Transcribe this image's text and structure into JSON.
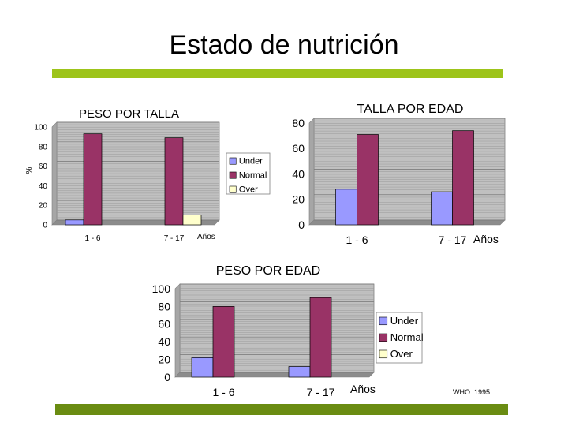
{
  "slide": {
    "title": "Estado de nutrición",
    "credit": "WHO. 1995."
  },
  "colors": {
    "accent_top": "#9dc41a",
    "accent_bottom": "#6a8c12",
    "plot_bg": "#c0c0c0",
    "under": "#9999ff",
    "normal": "#993366",
    "over": "#ffffcc"
  },
  "chart_data": [
    {
      "type": "bar",
      "title": "PESO POR TALLA",
      "ylabel": "%",
      "xlabel": "Años",
      "categories": [
        "1 - 6",
        "7 - 17"
      ],
      "ylim": [
        0,
        100
      ],
      "yticks": [
        0,
        20,
        40,
        60,
        80,
        100
      ],
      "legend": "right",
      "grid": true,
      "series": [
        {
          "name": "Under",
          "color": "#9999ff",
          "values": [
            5,
            0
          ]
        },
        {
          "name": "Normal",
          "color": "#993366",
          "values": [
            93,
            89
          ]
        },
        {
          "name": "Over",
          "color": "#ffffcc",
          "values": [
            0,
            10
          ]
        }
      ]
    },
    {
      "type": "bar",
      "title": "TALLA POR EDAD",
      "ylabel": "",
      "xlabel": "Años",
      "categories": [
        "1 - 6",
        "7 - 17"
      ],
      "ylim": [
        0,
        80
      ],
      "yticks": [
        0,
        20,
        40,
        60,
        80
      ],
      "legend": "none",
      "grid": true,
      "series": [
        {
          "name": "Under",
          "color": "#9999ff",
          "values": [
            28,
            26
          ]
        },
        {
          "name": "Normal",
          "color": "#993366",
          "values": [
            71,
            74
          ]
        }
      ]
    },
    {
      "type": "bar",
      "title": "PESO POR EDAD",
      "ylabel": "",
      "xlabel": "Años",
      "categories": [
        "1 - 6",
        "7 - 17"
      ],
      "ylim": [
        0,
        100
      ],
      "yticks": [
        0,
        20,
        40,
        60,
        80,
        100
      ],
      "legend": "right",
      "grid": true,
      "series": [
        {
          "name": "Under",
          "color": "#9999ff",
          "values": [
            22,
            12
          ]
        },
        {
          "name": "Normal",
          "color": "#993366",
          "values": [
            80,
            90
          ]
        },
        {
          "name": "Over",
          "color": "#ffffcc",
          "values": [
            0,
            0
          ]
        }
      ]
    }
  ]
}
